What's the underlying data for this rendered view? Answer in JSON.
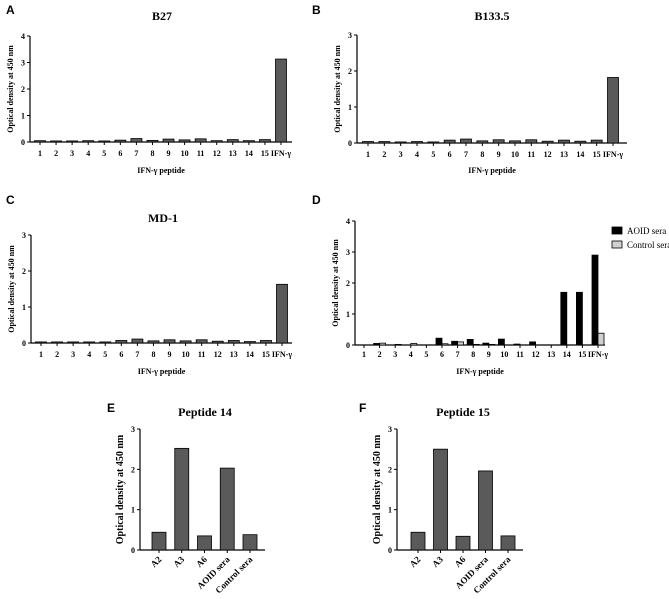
{
  "chart_data": [
    {
      "panel": "A",
      "type": "bar",
      "title": "B27",
      "xlabel": "IFN-γ peptide",
      "ylabel": "Optical density at 450 nm",
      "ylim": [
        0,
        4
      ],
      "yticks": [
        0,
        1,
        2,
        3,
        4
      ],
      "categories": [
        "1",
        "2",
        "3",
        "4",
        "5",
        "6",
        "7",
        "8",
        "9",
        "10",
        "11",
        "12",
        "13",
        "14",
        "15",
        "IFN-γ"
      ],
      "series": [
        {
          "values": [
            0.05,
            0.04,
            0.04,
            0.05,
            0.04,
            0.07,
            0.13,
            0.06,
            0.11,
            0.08,
            0.12,
            0.05,
            0.09,
            0.05,
            0.09,
            3.13
          ],
          "color": "#5a5a5a"
        }
      ]
    },
    {
      "panel": "B",
      "type": "bar",
      "title": "B133.5",
      "xlabel": "IFN-γ peptide",
      "ylabel": "Optical density at 450 nm",
      "ylim": [
        0,
        3
      ],
      "yticks": [
        0,
        1,
        2,
        3
      ],
      "categories": [
        "1",
        "2",
        "3",
        "4",
        "5",
        "6",
        "7",
        "8",
        "9",
        "10",
        "11",
        "12",
        "13",
        "14",
        "15",
        "IFN-γ"
      ],
      "series": [
        {
          "values": [
            0.04,
            0.04,
            0.03,
            0.04,
            0.03,
            0.08,
            0.11,
            0.06,
            0.09,
            0.06,
            0.09,
            0.05,
            0.08,
            0.05,
            0.08,
            1.82
          ],
          "color": "#5a5a5a"
        }
      ]
    },
    {
      "panel": "C",
      "type": "bar",
      "title": "MD-1",
      "xlabel": "IFN-γ peptide",
      "ylabel": "Optical density at 450 nm",
      "ylim": [
        0,
        3
      ],
      "yticks": [
        0,
        1,
        2,
        3
      ],
      "categories": [
        "1",
        "2",
        "3",
        "4",
        "5",
        "6",
        "7",
        "8",
        "9",
        "10",
        "11",
        "12",
        "13",
        "14",
        "15",
        "IFN-γ"
      ],
      "series": [
        {
          "values": [
            0.03,
            0.03,
            0.03,
            0.03,
            0.03,
            0.07,
            0.11,
            0.06,
            0.09,
            0.06,
            0.09,
            0.05,
            0.07,
            0.04,
            0.07,
            1.63
          ],
          "color": "#5a5a5a"
        }
      ]
    },
    {
      "panel": "D",
      "type": "bar",
      "title": "",
      "xlabel": "IFN-γ peptide",
      "ylabel": "Optical density at 450 nm",
      "ylim": [
        0,
        4
      ],
      "yticks": [
        0,
        1,
        2,
        3,
        4
      ],
      "legend": "right",
      "categories": [
        "1",
        "2",
        "3",
        "4",
        "5",
        "6",
        "7",
        "8",
        "9",
        "10",
        "11",
        "12",
        "13",
        "14",
        "15",
        "IFN-γ"
      ],
      "series": [
        {
          "name": "AOID sera",
          "values": [
            0,
            0.05,
            0,
            0,
            0,
            0.22,
            0.12,
            0.18,
            0.06,
            0.19,
            0.03,
            0.1,
            0,
            1.7,
            1.7,
            2.9
          ],
          "color": "#000000"
        },
        {
          "name": "Control sera",
          "values": [
            0,
            0.06,
            0.02,
            0.05,
            0,
            0.04,
            0.1,
            0.02,
            0.02,
            0,
            0,
            0,
            0,
            0,
            0,
            0.38
          ],
          "color": "#d0d0d0"
        }
      ]
    },
    {
      "panel": "E",
      "type": "bar",
      "title": "Peptide 14",
      "xlabel": "",
      "ylabel": "Optical density at 450 nm",
      "ylim": [
        0,
        3
      ],
      "yticks": [
        0,
        1,
        2,
        3
      ],
      "categories": [
        "A2",
        "A3",
        "A6",
        "AOID sera",
        "Control sera"
      ],
      "series": [
        {
          "values": [
            0.44,
            2.52,
            0.35,
            2.03,
            0.38
          ],
          "color": "#5a5a5a"
        }
      ]
    },
    {
      "panel": "F",
      "type": "bar",
      "title": "Peptide 15",
      "xlabel": "",
      "ylabel": "Optical density at 450 nm",
      "ylim": [
        0,
        3
      ],
      "yticks": [
        0,
        1,
        2,
        3
      ],
      "categories": [
        "A2",
        "A3",
        "A6",
        "AOID sera",
        "Control sera"
      ],
      "series": [
        {
          "values": [
            0.44,
            2.5,
            0.34,
            1.96,
            0.35
          ],
          "color": "#5a5a5a"
        }
      ]
    }
  ]
}
